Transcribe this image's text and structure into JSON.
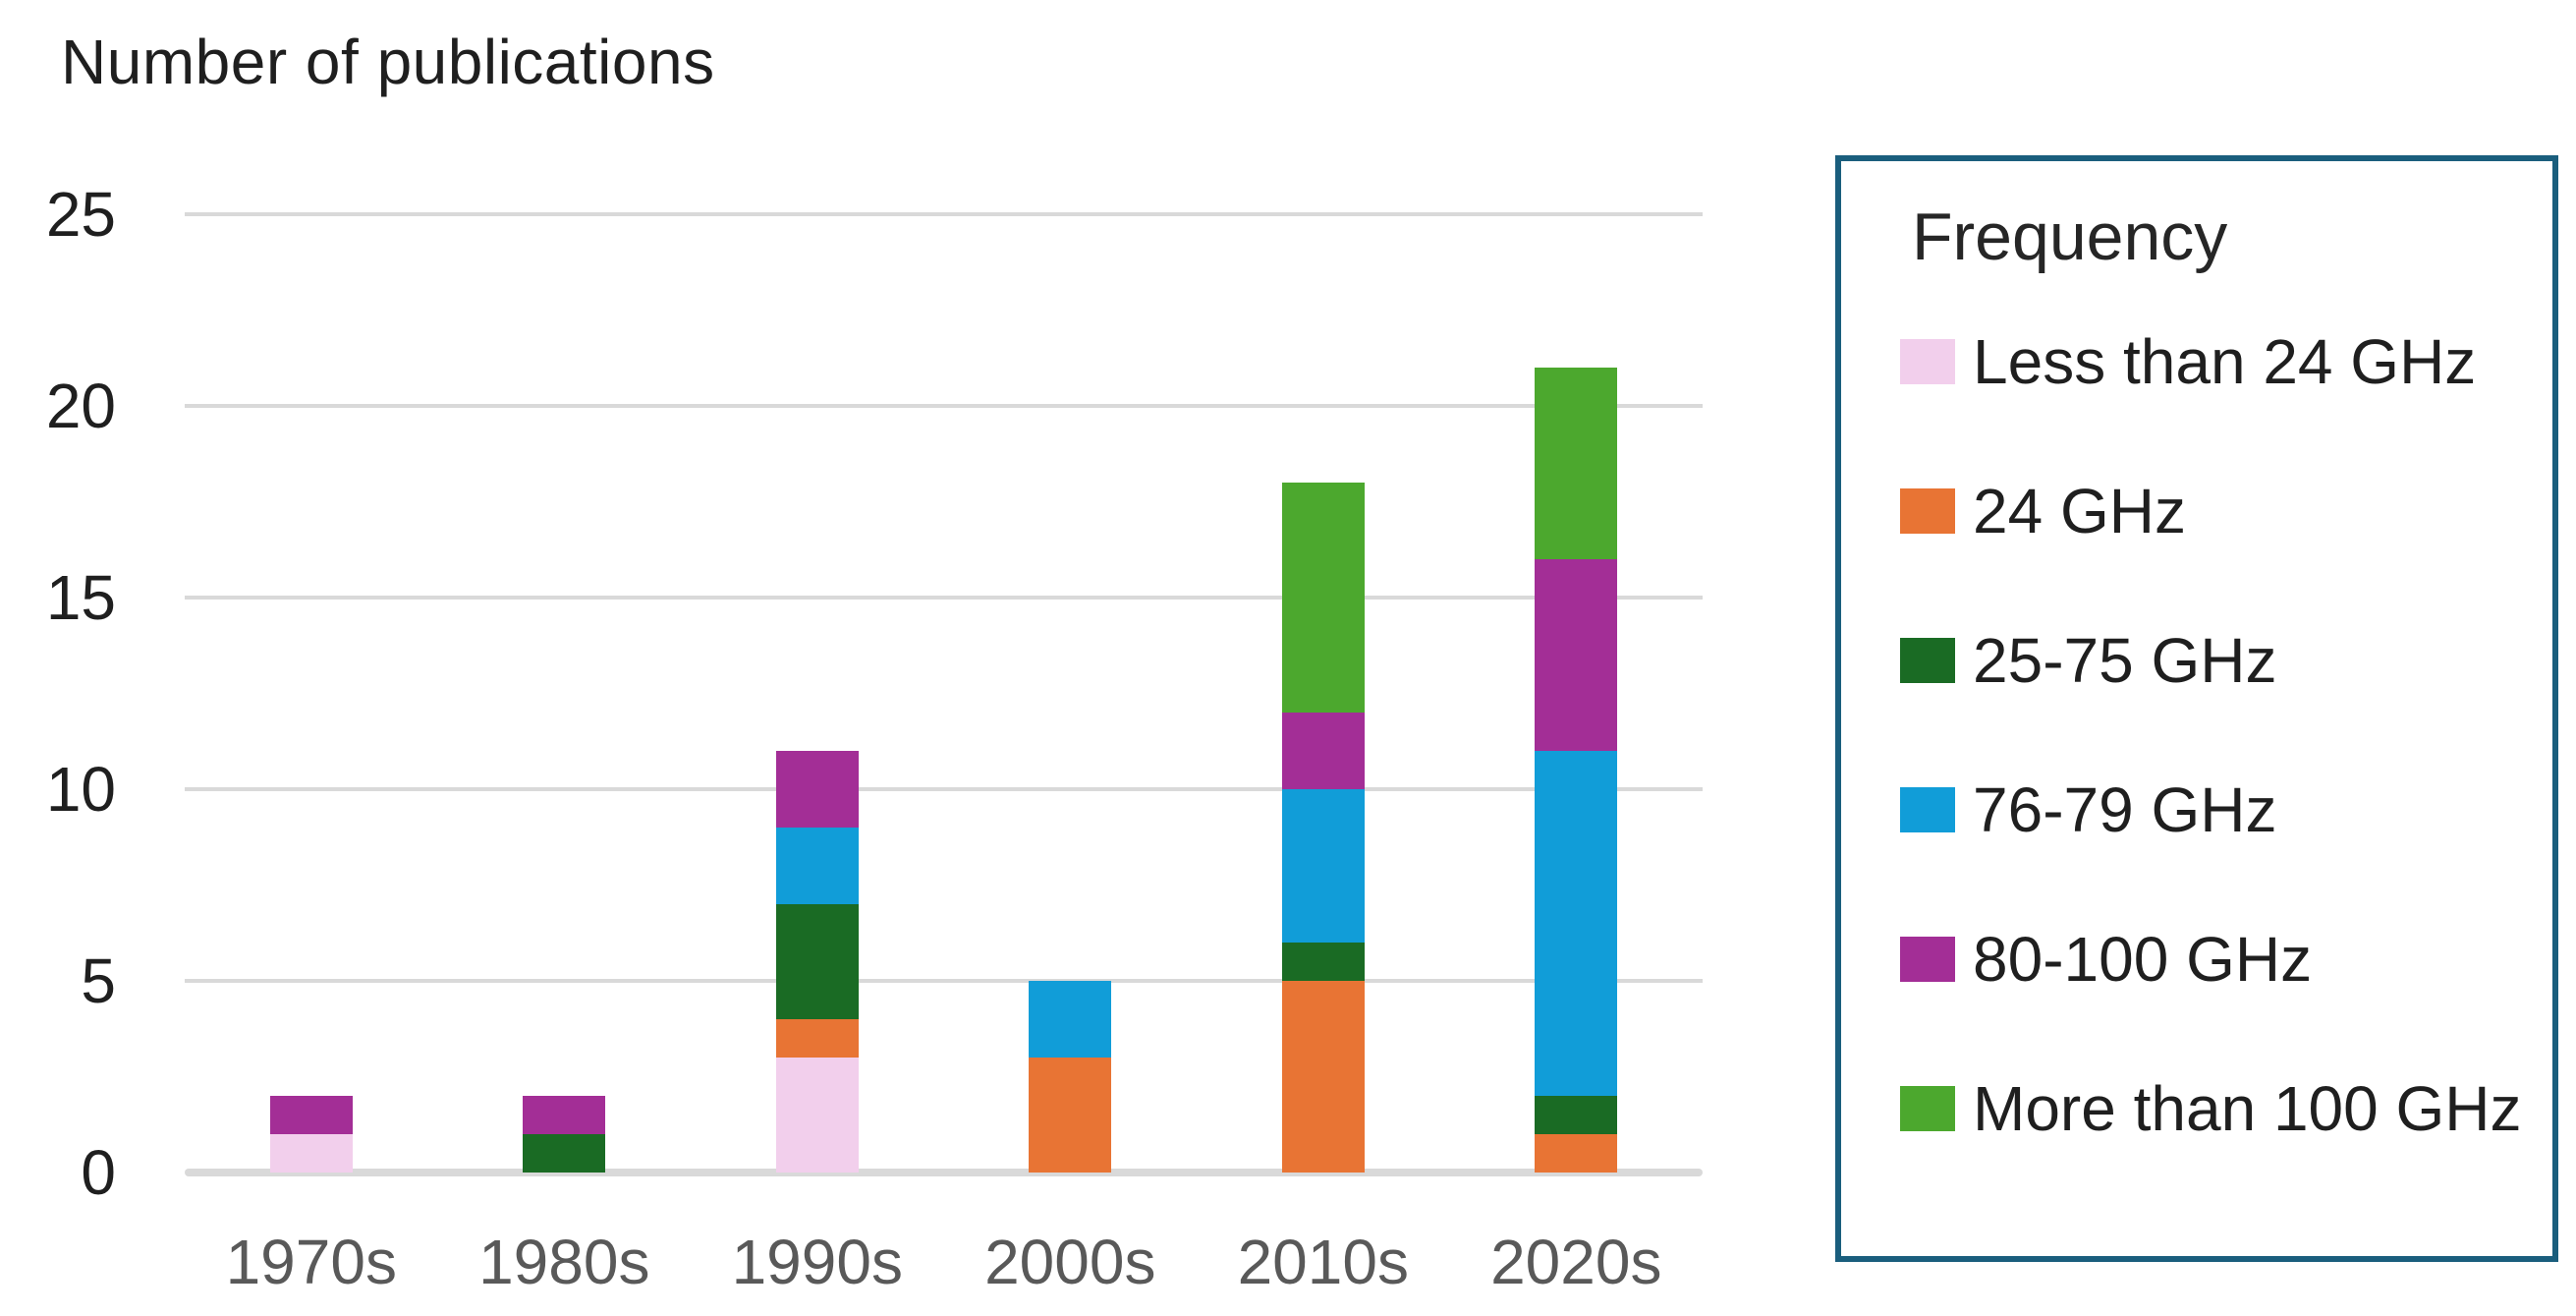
{
  "chart_data": {
    "type": "bar",
    "stacked": true,
    "title": "Number of publications",
    "legend_title": "Frequency",
    "legend_position": "right",
    "grid": "horizontal",
    "categories": [
      "1970s",
      "1980s",
      "1990s",
      "2000s",
      "2010s",
      "2020s"
    ],
    "series": [
      {
        "name": "Less than 24 GHz",
        "color": "#f2cfec",
        "values": [
          1,
          0,
          3,
          0,
          0,
          0
        ]
      },
      {
        "name": "24 GHz",
        "color": "#e87434",
        "values": [
          0,
          0,
          1,
          3,
          5,
          1
        ]
      },
      {
        "name": "25-75 GHz",
        "color": "#1a6b24",
        "values": [
          0,
          1,
          3,
          0,
          1,
          1
        ]
      },
      {
        "name": "76-79 GHz",
        "color": "#119dd8",
        "values": [
          0,
          0,
          2,
          2,
          4,
          9
        ]
      },
      {
        "name": "80-100 GHz",
        "color": "#a32e96",
        "values": [
          1,
          1,
          2,
          0,
          2,
          5
        ]
      },
      {
        "name": "More than 100 GHz",
        "color": "#4ca82e",
        "values": [
          0,
          0,
          0,
          0,
          6,
          5
        ]
      }
    ],
    "totals": [
      2,
      2,
      11,
      5,
      18,
      21
    ],
    "ylim": [
      0,
      25
    ],
    "ytick_step": 5,
    "yticks": [
      "0",
      "5",
      "10",
      "15",
      "20",
      "25"
    ]
  },
  "legend": {
    "border_color": "#1a5e7d"
  },
  "colors": {
    "background": "#ffffff",
    "gridline": "#d9d9d9",
    "axis_text": "#1f1f1f",
    "category_text": "#595959"
  }
}
